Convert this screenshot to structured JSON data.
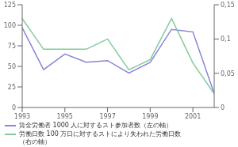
{
  "chart_data": {
    "type": "line",
    "x": [
      1993,
      1994,
      1995,
      1996,
      1997,
      1998,
      1999,
      2000,
      2001,
      2002
    ],
    "xlim": [
      1993,
      2002
    ],
    "xticks": [
      1993,
      1995,
      1997,
      1999,
      2001
    ],
    "ylim": [
      0,
      125
    ],
    "yticks": [
      0,
      25,
      50,
      75,
      100,
      125
    ],
    "y2lim": [
      0,
      0.15
    ],
    "y2ticks": [
      0,
      {
        "value": 0.05,
        "label": "0,05"
      },
      {
        "value": 0.1,
        "label": "0,1"
      },
      {
        "value": 0.15,
        "label": "0,15"
      }
    ],
    "series": [
      {
        "name": "賃金労働者 1000 人に対するスト参加者数（左の軸）",
        "color": "#8884d8",
        "values": [
          97,
          46,
          65,
          55,
          57,
          42,
          55,
          95,
          92,
          17
        ]
      },
      {
        "name": "労働日数 100 万日に対するストにより失われた労働日数\n（右の軸）",
        "color": "#82ca9d",
        "axis": "y2",
        "values": [
          0.13,
          0.085,
          0.085,
          0.085,
          0.1,
          0.055,
          0.07,
          0.13,
          0.065,
          0.02
        ]
      }
    ]
  }
}
